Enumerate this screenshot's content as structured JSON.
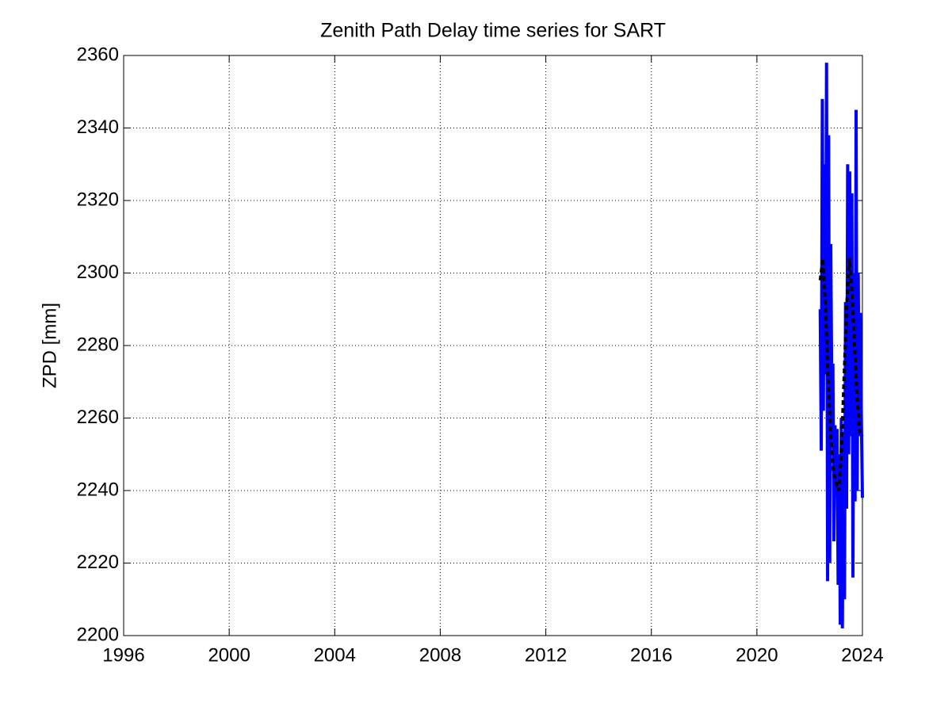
{
  "chart_data": {
    "type": "line",
    "title": "Zenith Path Delay time series for SART",
    "y_label": "ZPD [mm]",
    "xlim": [
      1996,
      2024
    ],
    "xticks": [
      1996,
      2000,
      2004,
      2008,
      2012,
      2016,
      2020,
      2024
    ],
    "ylim": [
      2200,
      2360
    ],
    "yticks": [
      2200,
      2220,
      2240,
      2260,
      2280,
      2300,
      2320,
      2340,
      2360
    ],
    "grid": true,
    "series": [
      {
        "color": "#0000ff",
        "dashed": false,
        "x": [
          2022.4,
          2022.44,
          2022.48,
          2022.52,
          2022.56,
          2022.6,
          2022.64,
          2022.68,
          2022.72,
          2022.76,
          2022.8,
          2022.84,
          2022.88,
          2022.92,
          2022.96,
          2023.0,
          2023.04,
          2023.08,
          2023.12,
          2023.16,
          2023.2,
          2023.24,
          2023.28,
          2023.32,
          2023.36,
          2023.4,
          2023.44,
          2023.48,
          2023.52,
          2023.56,
          2023.6,
          2023.64,
          2023.68,
          2023.72,
          2023.76,
          2023.8,
          2023.84,
          2023.88,
          2023.92,
          2023.96,
          2024.0
        ],
        "values": [
          2290,
          2251,
          2348,
          2262,
          2330,
          2272,
          2358,
          2215,
          2338,
          2220,
          2308,
          2265,
          2275,
          2226,
          2258,
          2240,
          2257,
          2214,
          2250,
          2203,
          2260,
          2202,
          2255,
          2210,
          2292,
          2235,
          2330,
          2250,
          2328,
          2255,
          2322,
          2216,
          2300,
          2237,
          2345,
          2240,
          2300,
          2255,
          2289,
          2260,
          2238
        ]
      },
      {
        "color": "#000000",
        "dashed": true,
        "x": [
          2022.4,
          2022.5,
          2022.6,
          2022.7,
          2022.8,
          2022.9,
          2023.0,
          2023.1,
          2023.2,
          2023.3,
          2023.4,
          2023.5,
          2023.6,
          2023.7,
          2023.8,
          2023.9,
          2024.0
        ],
        "values": [
          2298,
          2304,
          2290,
          2270,
          2255,
          2245,
          2242,
          2240,
          2250,
          2270,
          2290,
          2304,
          2295,
          2280,
          2265,
          2256,
          2255
        ]
      }
    ]
  }
}
